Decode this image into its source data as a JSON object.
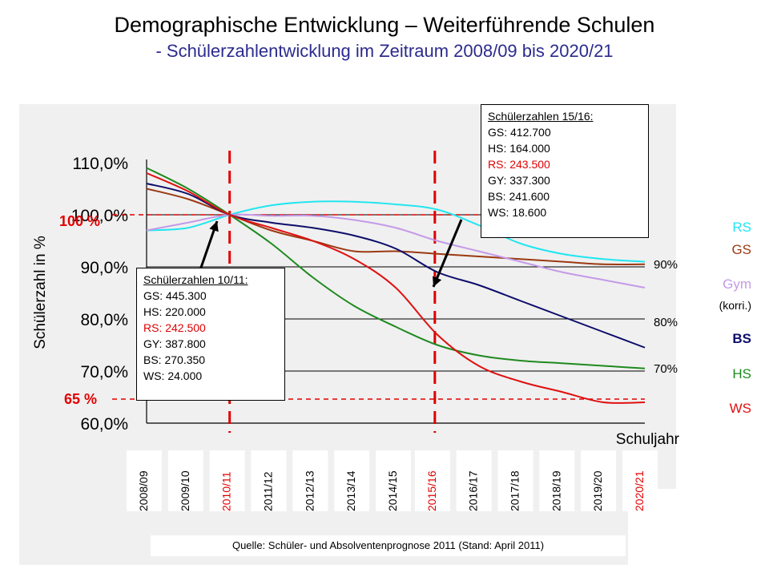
{
  "title": "Demographische Entwicklung – Weiterführende Schulen",
  "subtitle": "- Schülerzahlentwicklung im Zeitraum 2008/09 bis 2020/21",
  "source": "Quelle: Schüler- und Absolventenprognose 2011 (Stand: April 2011)",
  "chart_data": {
    "type": "line",
    "ylabel": "Schülerzahl in %",
    "xlabel": "Schuljahr",
    "ylim": [
      60,
      112
    ],
    "yticks": [
      "60,0%",
      "70,0%",
      "80,0%",
      "90,0%",
      "100,0%",
      "110,0%"
    ],
    "categories": [
      "2008/09",
      "2009/10",
      "2010/11",
      "2011/12",
      "2012/13",
      "2013/14",
      "2014/15",
      "2015/16",
      "2016/17",
      "2017/18",
      "2018/19",
      "2019/20",
      "2020/21"
    ],
    "highlight_categories": [
      "2010/11",
      "2015/16",
      "2020/21"
    ],
    "right_labels": [
      "90%",
      "80%",
      "70%"
    ],
    "ref_labels": {
      "top": "100 %",
      "bottom": "65 %"
    },
    "series": [
      {
        "name": "RS",
        "color": "#22e6f0",
        "values": [
          97.0,
          97.5,
          100.0,
          101.8,
          102.5,
          102.5,
          102.0,
          101.0,
          98.0,
          94.5,
          92.5,
          91.5,
          91.0
        ]
      },
      {
        "name": "GS",
        "color": "#9b3a12",
        "values": [
          105.0,
          103.0,
          100.0,
          97.0,
          95.0,
          93.0,
          93.0,
          92.5,
          92.0,
          91.5,
          91.0,
          90.5,
          90.5
        ]
      },
      {
        "name": "Gym (korri.)",
        "color": "#c49ae8",
        "values": [
          97.0,
          98.5,
          100.0,
          99.8,
          99.8,
          99.0,
          97.5,
          95.0,
          93.0,
          91.0,
          89.0,
          87.5,
          86.0
        ]
      },
      {
        "name": "BS",
        "color": "#0d0d6b",
        "values": [
          106.0,
          104.0,
          100.0,
          98.5,
          97.5,
          96.0,
          93.5,
          89.0,
          86.5,
          83.5,
          80.5,
          77.5,
          74.5
        ]
      },
      {
        "name": "HS",
        "color": "#1f8a1f",
        "values": [
          109.0,
          105.0,
          100.0,
          94.5,
          88.0,
          82.5,
          78.5,
          75.0,
          73.0,
          72.0,
          71.5,
          71.0,
          70.5
        ]
      },
      {
        "name": "WS",
        "color": "#e01010",
        "values": [
          108.0,
          104.5,
          100.0,
          97.5,
          95.0,
          91.5,
          86.0,
          77.0,
          71.0,
          68.0,
          66.0,
          64.0,
          64.0
        ]
      }
    ],
    "legend_labels": [
      "RS",
      "GS",
      "Gym",
      "(korri.)",
      "BS",
      "HS",
      "WS"
    ],
    "annotations": [
      {
        "heading": "Schülerzahlen 10/11:",
        "lines": [
          "GS:  445.300",
          "HS:  220.000",
          "RS:  242.500",
          "GY:  387.800",
          "BS:  270.350",
          "WS:   24.000"
        ]
      },
      {
        "heading": "Schülerzahlen 15/16:",
        "lines": [
          "GS:  412.700",
          "HS:  164.000",
          "RS:  243.500",
          "GY:  337.300",
          "BS:   241.600",
          "WS:    18.600"
        ]
      }
    ]
  }
}
